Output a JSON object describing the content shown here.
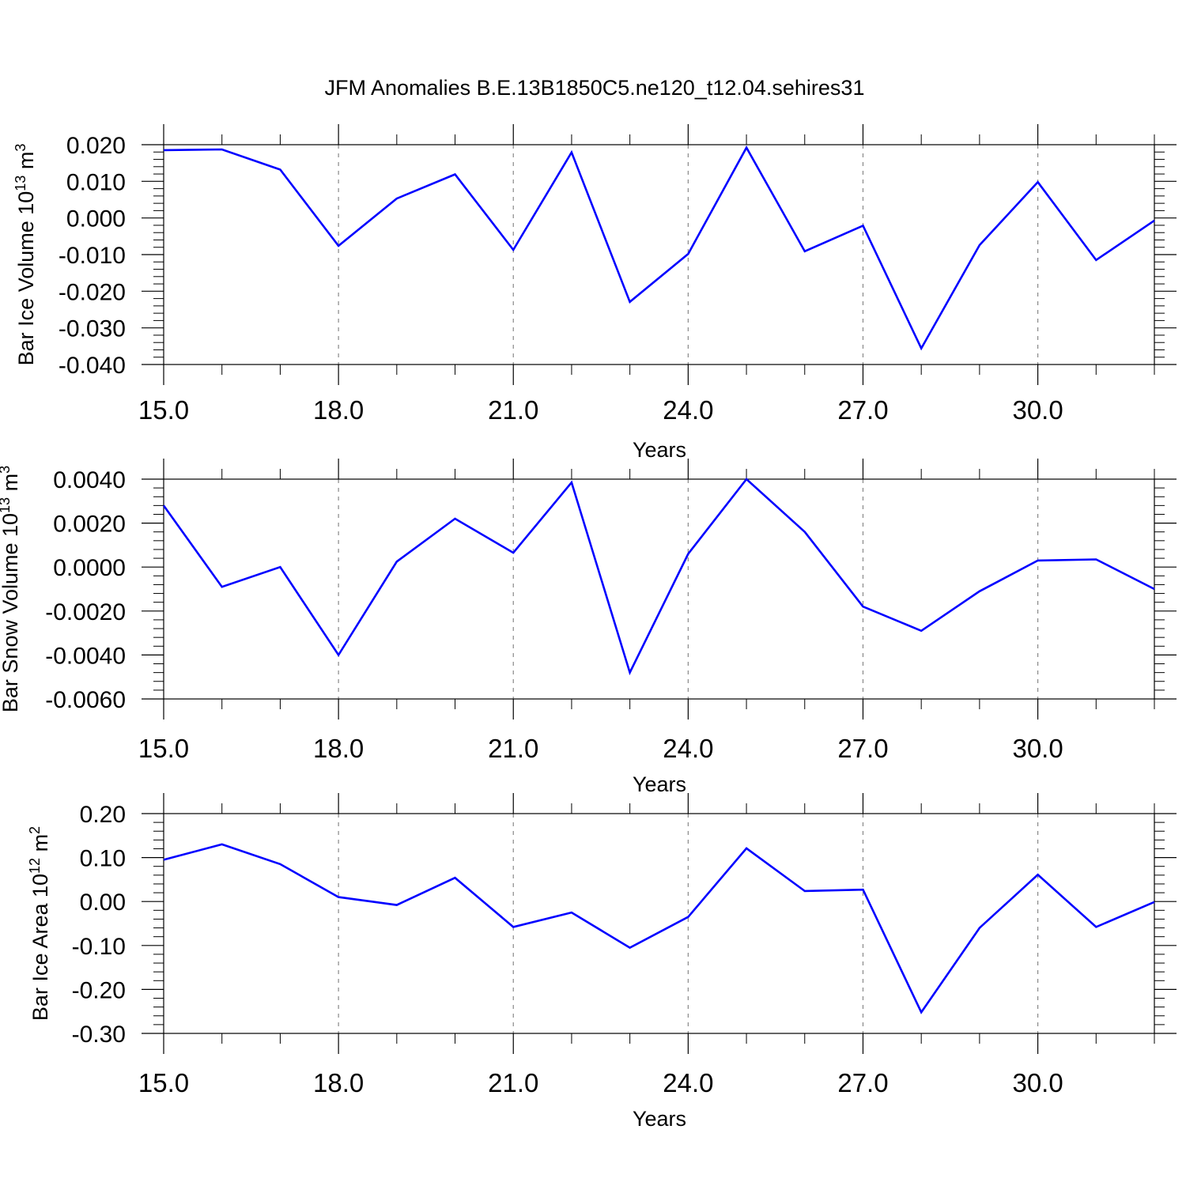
{
  "title": "JFM Anomalies B.E.13B1850C5.ne120_t12.04.sehires31",
  "colors": {
    "series": "#0000ff",
    "grid": "#888888",
    "axes": "#000000"
  },
  "chart_data": [
    {
      "type": "line",
      "ylabel_text": "Bar Ice Volume 10",
      "ylabel_exp": "13",
      "ylabel_unit": " m",
      "ylabel_unit_exp": "3",
      "xlabel": "Years",
      "xlim": [
        15,
        32
      ],
      "ylim": [
        -0.04,
        0.02
      ],
      "grid": "vertical dashed at labeled x ticks",
      "x_ticks": [
        15,
        18,
        21,
        24,
        27,
        30
      ],
      "x_tick_labels": [
        "15.0",
        "18.0",
        "21.0",
        "24.0",
        "27.0",
        "30.0"
      ],
      "y_ticks": [
        0.02,
        0.01,
        0.0,
        -0.01,
        -0.02,
        -0.03,
        -0.04
      ],
      "y_tick_labels": [
        "0.020",
        "0.010",
        "0.000",
        "-0.010",
        "-0.020",
        "-0.030",
        "-0.040"
      ],
      "y_minor_step": 0.002,
      "x": [
        15,
        16,
        17,
        18,
        19,
        20,
        21,
        22,
        23,
        24,
        25,
        26,
        27,
        28,
        29,
        30,
        31,
        32
      ],
      "values": [
        0.0185,
        0.0187,
        0.0132,
        -0.0076,
        0.0053,
        0.0119,
        -0.0087,
        0.0179,
        -0.0229,
        -0.0098,
        0.0192,
        -0.0091,
        -0.0021,
        -0.0356,
        -0.0074,
        0.0098,
        -0.0115,
        -0.0007
      ]
    },
    {
      "type": "line",
      "ylabel_text": "Bar Snow Volume 10",
      "ylabel_exp": "13",
      "ylabel_unit": " m",
      "ylabel_unit_exp": "3",
      "xlabel": "Years",
      "xlim": [
        15,
        32
      ],
      "ylim": [
        -0.006,
        0.004
      ],
      "grid": "vertical dashed at labeled x ticks",
      "x_ticks": [
        15,
        18,
        21,
        24,
        27,
        30
      ],
      "x_tick_labels": [
        "15.0",
        "18.0",
        "21.0",
        "24.0",
        "27.0",
        "30.0"
      ],
      "y_ticks": [
        0.004,
        0.002,
        0.0,
        -0.002,
        -0.004,
        -0.006
      ],
      "y_tick_labels": [
        "0.0040",
        "0.0020",
        "0.0000",
        "-0.0020",
        "-0.0040",
        "-0.0060"
      ],
      "y_minor_step": 0.0004,
      "x": [
        15,
        16,
        17,
        18,
        19,
        20,
        21,
        22,
        23,
        24,
        25,
        26,
        27,
        28,
        29,
        30,
        31,
        32
      ],
      "values": [
        0.0028,
        -0.0009,
        0.0,
        -0.004,
        0.00025,
        0.0022,
        0.00065,
        0.00385,
        -0.0048,
        0.0006,
        0.004,
        0.0016,
        -0.0018,
        -0.0029,
        -0.0011,
        0.0003,
        0.00035,
        -0.001
      ]
    },
    {
      "type": "line",
      "ylabel_text": "Bar Ice Area 10",
      "ylabel_exp": "12",
      "ylabel_unit": " m",
      "ylabel_unit_exp": "2",
      "xlabel": "Years",
      "xlim": [
        15,
        32
      ],
      "ylim": [
        -0.3,
        0.2
      ],
      "grid": "vertical dashed at labeled x ticks",
      "x_ticks": [
        15,
        18,
        21,
        24,
        27,
        30
      ],
      "x_tick_labels": [
        "15.0",
        "18.0",
        "21.0",
        "24.0",
        "27.0",
        "30.0"
      ],
      "y_ticks": [
        0.2,
        0.1,
        0.0,
        -0.1,
        -0.2,
        -0.3
      ],
      "y_tick_labels": [
        "0.20",
        "0.10",
        "0.00",
        "-0.10",
        "-0.20",
        "-0.30"
      ],
      "y_minor_step": 0.02,
      "x": [
        15,
        16,
        17,
        18,
        19,
        20,
        21,
        22,
        23,
        24,
        25,
        26,
        27,
        28,
        29,
        30,
        31,
        32
      ],
      "values": [
        0.095,
        0.13,
        0.085,
        0.01,
        -0.008,
        0.054,
        -0.058,
        -0.025,
        -0.105,
        -0.035,
        0.121,
        0.024,
        0.027,
        -0.252,
        -0.06,
        0.061,
        -0.058,
        -0.001
      ]
    }
  ]
}
